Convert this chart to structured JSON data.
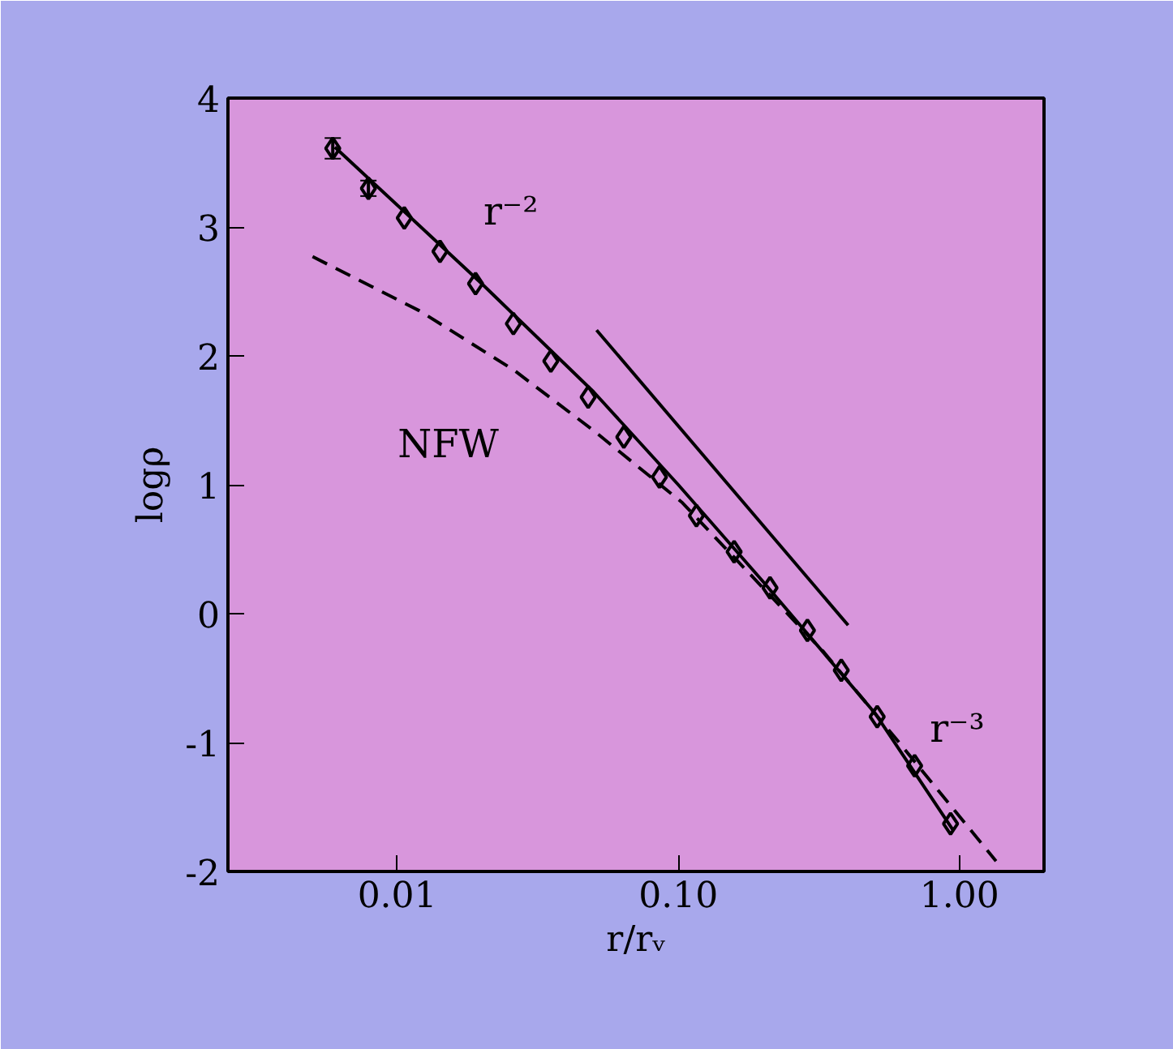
{
  "chart_data": {
    "type": "scatter",
    "xlabel": "r/rᵥ",
    "ylabel": "logρ",
    "log": "x",
    "grid": false,
    "xlim": [
      0.0025,
      2.0
    ],
    "ylim": [
      -2.0,
      4.0
    ],
    "xticks": [
      {
        "value": 0.01,
        "label": "0.01"
      },
      {
        "value": 0.1,
        "label": "0.10"
      },
      {
        "value": 1,
        "label": "1.00"
      }
    ],
    "yticks": [
      -2,
      -1,
      0,
      1,
      2,
      3,
      4
    ],
    "series": [
      {
        "marker": "diamond",
        "color": "#000000",
        "x": [
          0.0059,
          0.0079,
          0.0106,
          0.0142,
          0.019,
          0.0259,
          0.0352,
          0.0478,
          0.064,
          0.0857,
          0.116,
          0.158,
          0.212,
          0.288,
          0.38,
          0.51,
          0.693,
          0.93
        ],
        "values": [
          3.61,
          3.3,
          3.07,
          2.81,
          2.56,
          2.25,
          1.96,
          1.68,
          1.37,
          1.06,
          0.76,
          0.48,
          0.2,
          -0.13,
          -0.44,
          -0.8,
          -1.18,
          -1.63
        ],
        "errors": [
          0.08,
          0.06,
          null,
          null,
          null,
          null,
          null,
          null,
          null,
          null,
          null,
          null,
          null,
          null,
          null,
          null,
          null,
          null
        ]
      },
      {
        "type": "line",
        "line_style": "solid",
        "color": "#000000",
        "x": [
          0.006,
          0.02,
          0.05,
          0.1,
          0.2,
          0.5,
          0.95
        ],
        "values": [
          3.62,
          2.56,
          1.72,
          1.0,
          0.25,
          -0.77,
          -1.68
        ]
      },
      {
        "type": "line",
        "line_style": "dashed",
        "color": "#000000",
        "x": [
          0.005,
          0.012,
          0.026,
          0.05,
          0.1035,
          0.33,
          0.6,
          1.35
        ],
        "values": [
          2.77,
          2.35,
          1.89,
          1.42,
          0.86,
          -0.3,
          -0.98,
          -1.92
        ]
      },
      {
        "type": "line",
        "line_style": "solid",
        "color": "#000000",
        "x": [
          0.0512,
          0.402
        ],
        "values": [
          2.2,
          -0.09
        ]
      }
    ],
    "annotations": [
      "r⁻²",
      "NFW",
      "r⁻³"
    ]
  }
}
